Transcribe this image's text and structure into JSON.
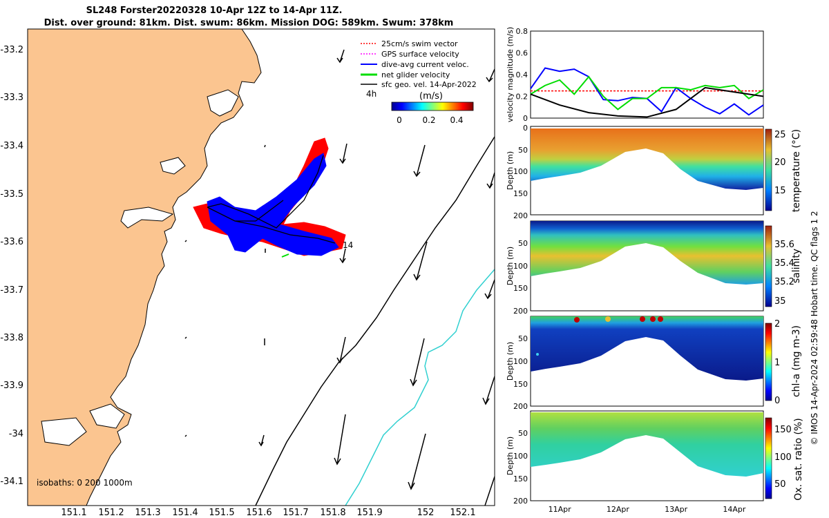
{
  "title": {
    "line1": "SL248 Forster20220328 10-Apr 12Z to 14-Apr 11Z.",
    "line2": "Dist. over ground: 81km. Dist. swum: 86km. Mission DOG: 589km. Swum: 378km"
  },
  "credit": "© IMOS 14-Apr-2024 02:59:48 Hobart time. QC flags 1  2",
  "map": {
    "lon_ticks": [
      "151.1",
      "151.2",
      "151.3",
      "151.4",
      "151.5",
      "151.6",
      "151.7",
      "151.8",
      "151.9",
      "152",
      "152.1"
    ],
    "lat_ticks": [
      "-33.2",
      "-33.3",
      "-33.4",
      "-33.5",
      "-33.6",
      "-33.7",
      "-33.8",
      "-33.9",
      "-34",
      "-34.1"
    ],
    "legend": [
      {
        "label": "25cm/s swim vector",
        "color": "#ff0000"
      },
      {
        "label": "GPS surface velocity",
        "color": "#ff00ff"
      },
      {
        "label": "dive-avg current veloc.",
        "color": "#0000ff"
      },
      {
        "label": "net glider velocity",
        "color": "#00dd00"
      },
      {
        "label": "sfc geo. vel. 14-Apr-2022",
        "color": "#000000"
      }
    ],
    "time_marker": "4h",
    "colorbar_unit": "(m/s)",
    "colorbar_ticks": [
      "0",
      "0.2",
      "0.4"
    ],
    "isobaths": "isobaths: 0   200  1000m",
    "track_labels": [
      "14"
    ]
  },
  "chart_data": [
    {
      "type": "line",
      "ylabel": "velocity magnitude (m/s)",
      "ylim": [
        0,
        0.8
      ],
      "yticks": [
        "0",
        "0.2",
        "0.4",
        "0.6",
        "0.8"
      ],
      "series": [
        {
          "name": "swim",
          "color": "#ff0000",
          "x": [
            0,
            4
          ],
          "values": [
            0.25,
            0.25
          ]
        },
        {
          "name": "dive-avg current",
          "color": "#0000ff",
          "x": [
            0,
            0.25,
            0.5,
            0.75,
            1.0,
            1.25,
            1.5,
            1.75,
            2.0,
            2.25,
            2.5,
            2.75,
            3.0,
            3.25,
            3.5,
            3.75,
            4.0
          ],
          "values": [
            0.27,
            0.46,
            0.43,
            0.45,
            0.38,
            0.17,
            0.16,
            0.19,
            0.18,
            0.06,
            0.28,
            0.18,
            0.1,
            0.04,
            0.13,
            0.03,
            0.12
          ]
        },
        {
          "name": "net glider",
          "color": "#00dd00",
          "x": [
            0,
            0.25,
            0.5,
            0.75,
            1.0,
            1.25,
            1.5,
            1.75,
            2.0,
            2.25,
            2.5,
            2.75,
            3.0,
            3.25,
            3.5,
            3.75,
            4.0
          ],
          "values": [
            0.22,
            0.3,
            0.35,
            0.22,
            0.38,
            0.2,
            0.08,
            0.18,
            0.18,
            0.28,
            0.28,
            0.26,
            0.3,
            0.28,
            0.3,
            0.18,
            0.26
          ]
        },
        {
          "name": "sfc geo",
          "color": "#000000",
          "x": [
            0,
            0.5,
            1.0,
            1.5,
            2.0,
            2.5,
            3.0,
            3.5,
            4.0
          ],
          "values": [
            0.22,
            0.12,
            0.05,
            0.02,
            0.01,
            0.08,
            0.28,
            0.24,
            0.2
          ]
        }
      ]
    },
    {
      "type": "heatmap",
      "variable": "temperature",
      "colorbar_label": "temperature (°C)",
      "clim": [
        12,
        25
      ],
      "cticks": [
        "15",
        "20",
        "25"
      ],
      "ylabel": "Depth (m)",
      "ylim": [
        0,
        200
      ],
      "yticks": [
        "0",
        "50",
        "100",
        "150",
        "200"
      ]
    },
    {
      "type": "heatmap",
      "variable": "salinity",
      "colorbar_label": "salinity",
      "clim": [
        34.9,
        35.7
      ],
      "cticks": [
        "35",
        "35.2",
        "35.4",
        "35.6"
      ],
      "ylabel": "Depth (m)",
      "ylim": [
        0,
        200
      ],
      "yticks": [
        "50",
        "100",
        "150",
        "200"
      ]
    },
    {
      "type": "heatmap",
      "variable": "chl-a",
      "colorbar_label": "chl-a (mg m-3)",
      "clim": [
        0,
        2
      ],
      "cticks": [
        "0",
        "1",
        "2"
      ],
      "ylabel": "Depth (m)",
      "ylim": [
        0,
        200
      ],
      "yticks": [
        "50",
        "100",
        "150",
        "200"
      ]
    },
    {
      "type": "heatmap",
      "variable": "oxygen",
      "colorbar_label": "Ox. sat. ratio (%)",
      "clim": [
        25,
        175
      ],
      "cticks": [
        "50",
        "100",
        "150"
      ],
      "ylabel": "Depth (m)",
      "ylim": [
        0,
        200
      ],
      "yticks": [
        "50",
        "100",
        "150",
        "200"
      ],
      "xticks": [
        "11Apr",
        "12Apr",
        "13Apr",
        "14Apr"
      ],
      "xlim": [
        0,
        4
      ],
      "xtick_values": [
        0.5,
        1.5,
        2.5,
        3.5
      ]
    }
  ]
}
